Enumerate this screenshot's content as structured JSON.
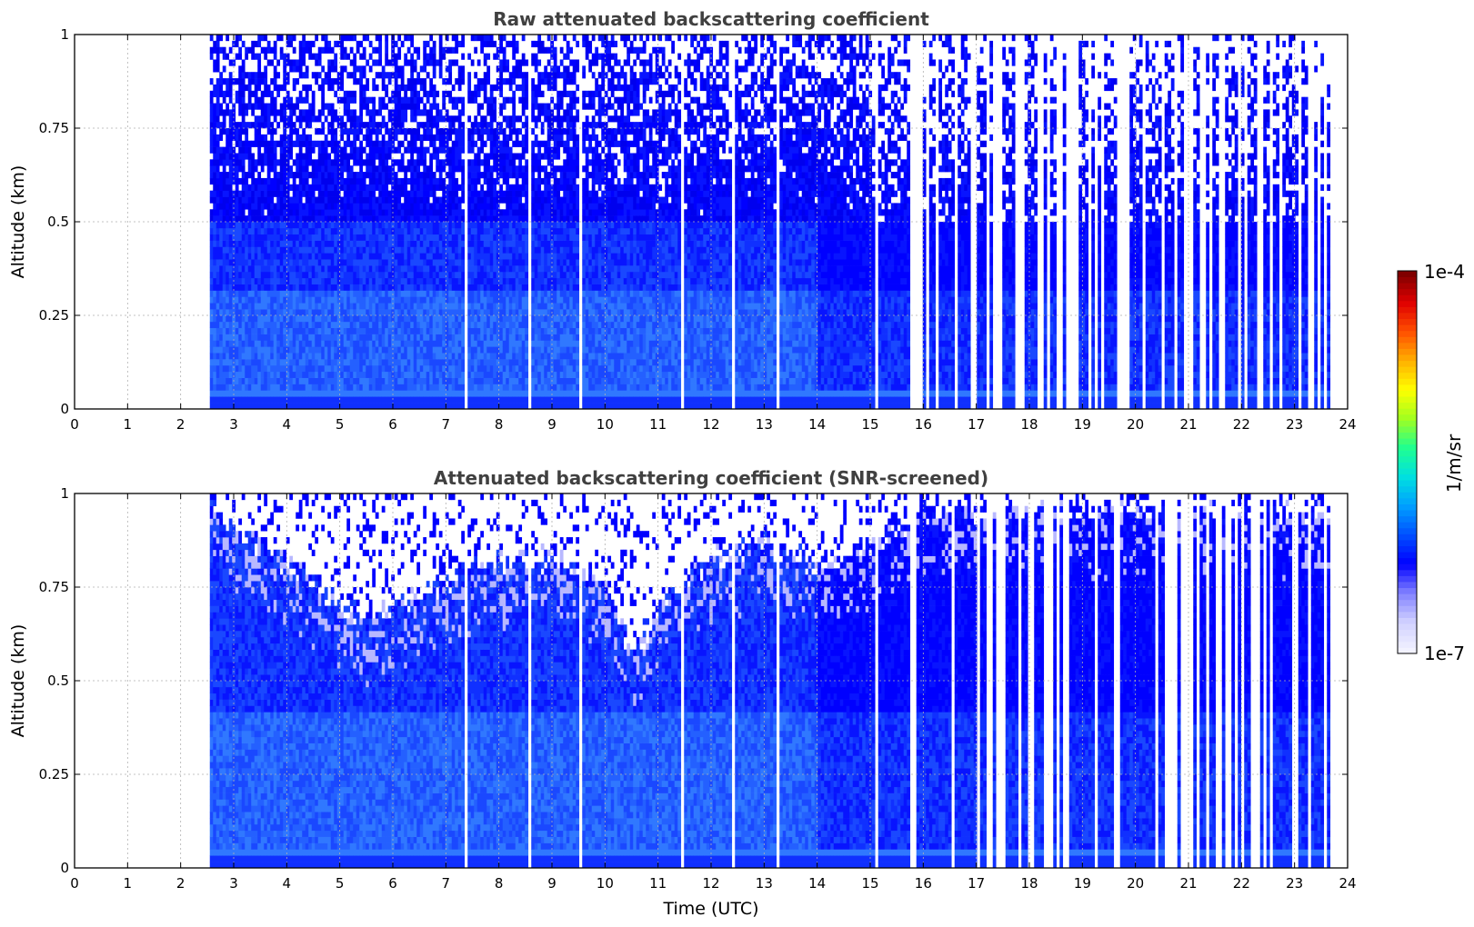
{
  "chart_data": [
    {
      "type": "heatmap",
      "title": "Raw attenuated backscattering coefficient",
      "ylabel": "Altitude (km)",
      "xlabel": "",
      "xlim": [
        0,
        24
      ],
      "ylim": [
        0,
        1
      ],
      "xticks": [
        "0",
        "1",
        "2",
        "3",
        "4",
        "5",
        "6",
        "7",
        "8",
        "9",
        "10",
        "11",
        "12",
        "13",
        "14",
        "15",
        "16",
        "17",
        "18",
        "19",
        "20",
        "21",
        "22",
        "23",
        "24"
      ],
      "yticks": [
        "0",
        "0.25",
        "0.5",
        "0.75",
        "1"
      ],
      "grid": true,
      "data_start_hour": 2.55,
      "data_end_hour": 23.7,
      "gap_hours": [
        7.35,
        8.55,
        9.5,
        11.45,
        12.4,
        13.25,
        15.1,
        15.75
      ],
      "dense_gap_region": [
        15.8,
        23.7
      ],
      "noise_onset_altitude_km": 0.5,
      "surface_layer_altitude_km": 0.05
    },
    {
      "type": "heatmap",
      "title": "Attenuated backscattering coefficient (SNR-screened)",
      "ylabel": "Altitude (km)",
      "xlabel": "Time (UTC)",
      "xlim": [
        0,
        24
      ],
      "ylim": [
        0,
        1
      ],
      "xticks": [
        "0",
        "1",
        "2",
        "3",
        "4",
        "5",
        "6",
        "7",
        "8",
        "9",
        "10",
        "11",
        "12",
        "13",
        "14",
        "15",
        "16",
        "17",
        "18",
        "19",
        "20",
        "21",
        "22",
        "23",
        "24"
      ],
      "yticks": [
        "0",
        "0.25",
        "0.5",
        "0.75",
        "1"
      ],
      "grid": true,
      "data_start_hour": 2.55,
      "data_end_hour": 23.7,
      "gap_hours": [
        7.35,
        8.55,
        9.5,
        11.45,
        12.4,
        13.25,
        15.1,
        15.75
      ],
      "dense_gap_region": [
        15.8,
        23.7
      ],
      "screened_top_km": [
        [
          2.6,
          0.95
        ],
        [
          3.5,
          0.85
        ],
        [
          4.5,
          0.75
        ],
        [
          5.5,
          0.65
        ],
        [
          6.5,
          0.72
        ],
        [
          7.5,
          0.8
        ],
        [
          9.0,
          0.82
        ],
        [
          10.0,
          0.75
        ],
        [
          10.5,
          0.55
        ],
        [
          11.0,
          0.7
        ],
        [
          12.0,
          0.82
        ],
        [
          13.0,
          0.85
        ],
        [
          14.0,
          0.8
        ],
        [
          15.0,
          0.85
        ],
        [
          16.0,
          0.95
        ]
      ]
    }
  ],
  "colorbar": {
    "min_label": "1e-7",
    "max_label": "1e-4",
    "unit_label": "1/m/sr",
    "scale": "log",
    "colormap": [
      "#f2f2ff",
      "#d0d0ff",
      "#8080ff",
      "#0000ff",
      "#0050ff",
      "#00a0ff",
      "#00e0e0",
      "#20ff90",
      "#a0ff20",
      "#ffff00",
      "#ffb000",
      "#ff5000",
      "#e00000",
      "#800000"
    ]
  },
  "colors": {
    "deep_blue": "#0000f0",
    "mid_blue": "#1a55ff",
    "light_blue": "#3a8cff",
    "background": "#ffffff"
  }
}
